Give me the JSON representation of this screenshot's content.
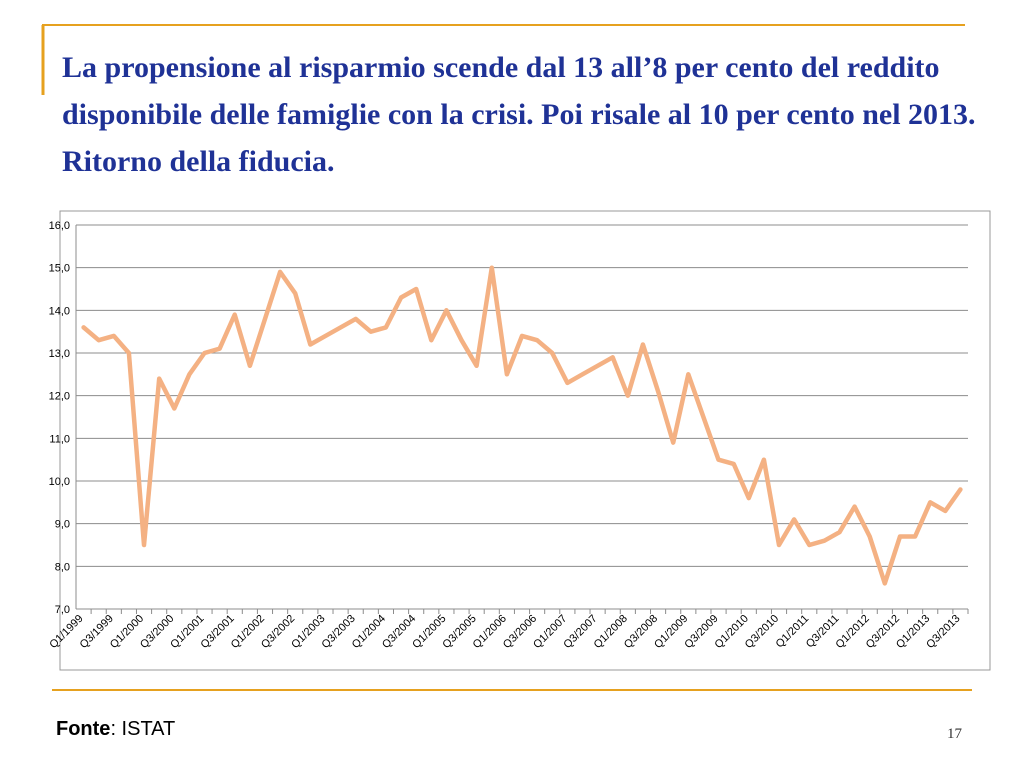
{
  "title": "La propensione al risparmio scende dal 13 all’8 per cento del reddito disponibile delle famiglie con la crisi. Poi risale al 10 per cento nel 2013. Ritorno della fiducia.",
  "source_label": "Fonte",
  "source": ": ISTAT",
  "page_number": "17",
  "chart_data": {
    "type": "line",
    "categories": [
      "Q1/1999",
      null,
      "Q3/1999",
      null,
      "Q1/2000",
      null,
      "Q3/2000",
      null,
      "Q1/2001",
      null,
      "Q3/2001",
      null,
      "Q1/2002",
      null,
      "Q3/2002",
      null,
      "Q1/2003",
      null,
      "Q3/2003",
      null,
      "Q1/2004",
      null,
      "Q3/2004",
      null,
      "Q1/2005",
      null,
      "Q3/2005",
      null,
      "Q1/2006",
      null,
      "Q3/2006",
      null,
      "Q1/2007",
      null,
      "Q3/2007",
      null,
      "Q1/2008",
      null,
      "Q3/2008",
      null,
      "Q1/2009",
      null,
      "Q3/2009",
      null,
      "Q1/2010",
      null,
      "Q3/2010",
      null,
      "Q1/2011",
      null,
      "Q3/2011",
      null,
      "Q1/2012",
      null,
      "Q3/2012",
      null,
      "Q1/2013",
      null,
      "Q3/2013"
    ],
    "values": [
      13.6,
      13.3,
      13.4,
      13.0,
      8.5,
      12.4,
      11.7,
      12.5,
      13.0,
      13.1,
      13.9,
      12.7,
      13.8,
      14.9,
      14.4,
      13.2,
      13.4,
      13.6,
      13.8,
      13.5,
      13.6,
      14.3,
      14.5,
      13.3,
      14.0,
      13.3,
      12.7,
      15.0,
      12.5,
      13.4,
      13.3,
      13.0,
      12.3,
      12.5,
      12.7,
      12.9,
      12.0,
      13.2,
      12.1,
      10.9,
      12.5,
      11.5,
      10.5,
      10.4,
      9.6,
      10.5,
      8.5,
      9.1,
      8.5,
      8.6,
      8.8,
      9.4,
      8.7,
      7.6,
      8.7,
      8.7,
      9.5,
      9.3,
      9.8
    ],
    "color": "#f4b183",
    "ylim": [
      7,
      16
    ],
    "yticks": [
      {
        "value": 7,
        "label": "7,0"
      },
      {
        "value": 8,
        "label": "8,0"
      },
      {
        "value": 9,
        "label": "9,0"
      },
      {
        "value": 10,
        "label": "10,0"
      },
      {
        "value": 11,
        "label": "11,0"
      },
      {
        "value": 12,
        "label": "12,0"
      },
      {
        "value": 13,
        "label": "13,0"
      },
      {
        "value": 14,
        "label": "14,0"
      },
      {
        "value": 15,
        "label": "15,0"
      },
      {
        "value": 16,
        "label": "16,0"
      }
    ],
    "grid": true
  }
}
